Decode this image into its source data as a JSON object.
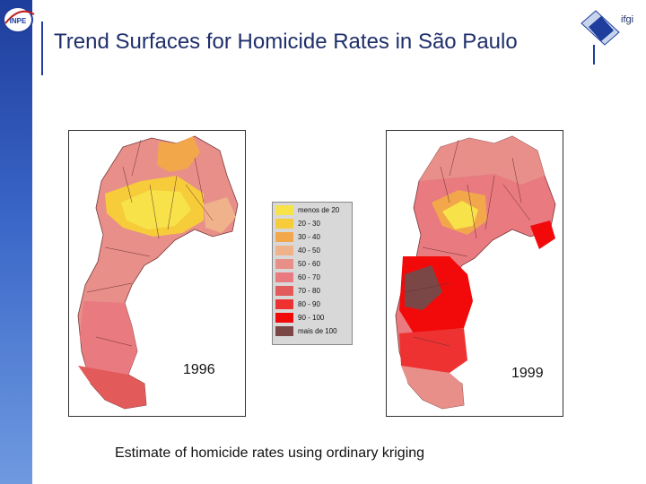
{
  "slide": {
    "title": "Trend Surfaces for Homicide Rates in São Paulo",
    "caption": "Estimate of homicide rates using ordinary kriging",
    "logo_left_text": "INPE",
    "logo_right_text": "ifgi"
  },
  "maps": [
    {
      "year": "1996"
    },
    {
      "year": "1999"
    }
  ],
  "legend": [
    {
      "label": "menos de 20",
      "color": "#f7e24a"
    },
    {
      "label": "20 - 30",
      "color": "#f7cc3a"
    },
    {
      "label": "30 - 40",
      "color": "#f2a84a"
    },
    {
      "label": "40 - 50",
      "color": "#f0b28a"
    },
    {
      "label": "50 - 60",
      "color": "#e88f8a"
    },
    {
      "label": "60 - 70",
      "color": "#e87a80"
    },
    {
      "label": "70 - 80",
      "color": "#e25a5a"
    },
    {
      "label": "80 - 90",
      "color": "#ee3232"
    },
    {
      "label": "90 - 100",
      "color": "#f20a0a"
    },
    {
      "label": "mais de 100",
      "color": "#7a4646"
    }
  ]
}
